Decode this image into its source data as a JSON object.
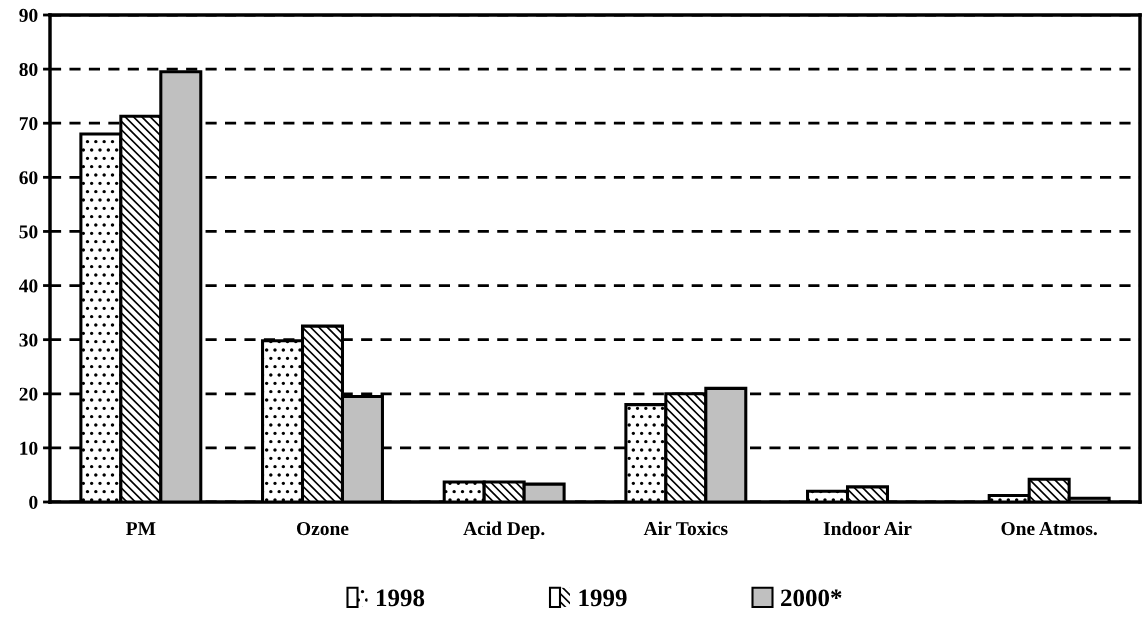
{
  "chart_data": {
    "type": "bar",
    "categories": [
      "PM",
      "Ozone",
      "Acid Dep.",
      "Air Toxics",
      "Indoor Air",
      "One Atmos."
    ],
    "series": [
      {
        "name": "1998",
        "color": "#ffffff",
        "values": [
          68,
          29.8,
          3.7,
          18,
          2,
          1.2
        ]
      },
      {
        "name": "1999",
        "color": "#ffffff",
        "values": [
          71.3,
          32.5,
          3.7,
          20,
          2.8,
          4.2
        ]
      },
      {
        "name": "2000*",
        "color": "#c0c0c0",
        "values": [
          79.5,
          19.5,
          3.3,
          21,
          null,
          0.7
        ]
      }
    ],
    "ylim": [
      0,
      90
    ],
    "yticks": [
      0,
      10,
      20,
      30,
      40,
      50,
      60,
      70,
      80,
      90
    ],
    "grid": "y",
    "line_style": "dashed",
    "legend": "bottom"
  }
}
